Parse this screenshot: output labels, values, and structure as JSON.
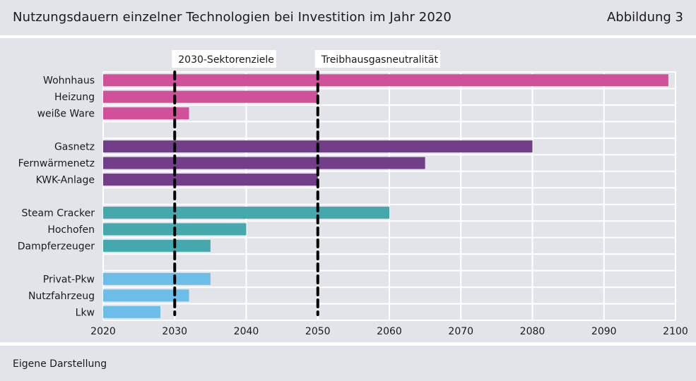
{
  "header": {
    "title": "Nutzungsdauern einzelner Technologien bei Investition im Jahr 2020",
    "figure_label": "Abbildung 3"
  },
  "footer": {
    "source": "Eigene Darstellung"
  },
  "chart_data": {
    "type": "bar",
    "orientation": "horizontal",
    "categories": [
      "Wohnhaus",
      "Heizung",
      "weiße Ware",
      "",
      "Gasnetz",
      "Fernwärmenetz",
      "KWK-Anlage",
      "",
      "Steam Cracker",
      "Hochofen",
      "Dampferzeuger",
      "",
      "Privat-Pkw",
      "Nutzfahrzeug",
      "Lkw"
    ],
    "values": [
      2099,
      2050,
      2032,
      null,
      2080,
      2065,
      2050,
      null,
      2060,
      2040,
      2035,
      null,
      2035,
      2032,
      2028
    ],
    "colors": [
      "#d0509a",
      "#d0509a",
      "#d0509a",
      null,
      "#733e89",
      "#733e89",
      "#733e89",
      null,
      "#45a8ac",
      "#45a8ac",
      "#45a8ac",
      null,
      "#6cbde8",
      "#6cbde8",
      "#6cbde8"
    ],
    "xlim": [
      2020,
      2100
    ],
    "xticks": [
      2020,
      2030,
      2040,
      2050,
      2060,
      2070,
      2080,
      2090,
      2100
    ],
    "grid": true,
    "reference_lines": [
      {
        "x": 2030,
        "label": "2030-Sektorenziele"
      },
      {
        "x": 2050,
        "label": "Treibhausgasneutralität"
      }
    ],
    "title": "",
    "xlabel": "",
    "ylabel": ""
  }
}
